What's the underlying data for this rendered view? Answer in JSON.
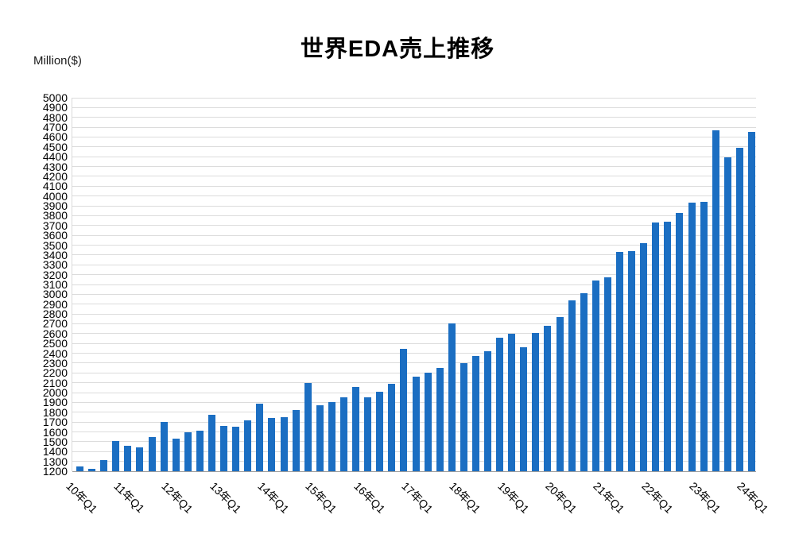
{
  "title": "世界EDA売上推移",
  "y_axis_unit": "Million($)",
  "chart_data": {
    "type": "bar",
    "title": "世界EDA売上推移",
    "ylabel": "Million($)",
    "xlabel": "",
    "ylim": [
      1200,
      5000
    ],
    "ytick_step": 100,
    "grid": true,
    "legend": "none",
    "bar_color": "#1b6ec2",
    "gridline_color": "#dcdcdc",
    "axis_color": "#9d9d9d",
    "x_tick_shown_every": 4,
    "categories": [
      "10年Q1",
      "10年Q2",
      "10年Q3",
      "10年Q4",
      "11年Q1",
      "11年Q2",
      "11年Q3",
      "11年Q4",
      "12年Q1",
      "12年Q2",
      "12年Q3",
      "12年Q4",
      "13年Q1",
      "13年Q2",
      "13年Q3",
      "13年Q4",
      "14年Q1",
      "14年Q2",
      "14年Q3",
      "14年Q4",
      "15年Q1",
      "15年Q2",
      "15年Q3",
      "15年Q4",
      "16年Q1",
      "16年Q2",
      "16年Q3",
      "16年Q4",
      "17年Q1",
      "17年Q2",
      "17年Q3",
      "17年Q4",
      "18年Q1",
      "18年Q2",
      "18年Q3",
      "18年Q4",
      "19年Q1",
      "19年Q2",
      "19年Q3",
      "19年Q4",
      "20年Q1",
      "20年Q2",
      "20年Q3",
      "20年Q4",
      "21年Q1",
      "21年Q2",
      "21年Q3",
      "21年Q4",
      "22年Q1",
      "22年Q2",
      "22年Q3",
      "22年Q4",
      "23年Q1",
      "23年Q2",
      "23年Q3",
      "23年Q4",
      "24年Q1"
    ],
    "x_tick_labels": [
      "10年Q1",
      "11年Q1",
      "12年Q1",
      "13年Q1",
      "14年Q1",
      "15年Q1",
      "16年Q1",
      "17年Q1",
      "18年Q1",
      "19年Q1",
      "20年Q1",
      "21年Q1",
      "22年Q1",
      "23年Q1",
      "24年Q1"
    ],
    "values": [
      1250,
      1225,
      1315,
      1510,
      1455,
      1440,
      1545,
      1700,
      1535,
      1595,
      1615,
      1775,
      1660,
      1650,
      1720,
      1885,
      1740,
      1750,
      1820,
      2100,
      1870,
      1900,
      1950,
      2060,
      1955,
      2005,
      2090,
      2445,
      2160,
      2200,
      2250,
      2700,
      2300,
      2370,
      2420,
      2560,
      2600,
      2460,
      2610,
      2680,
      2770,
      2940,
      3015,
      3140,
      3170,
      3430,
      3440,
      3520,
      3730,
      3740,
      3830,
      3930,
      3940,
      4670,
      4390,
      4490,
      4650
    ]
  }
}
